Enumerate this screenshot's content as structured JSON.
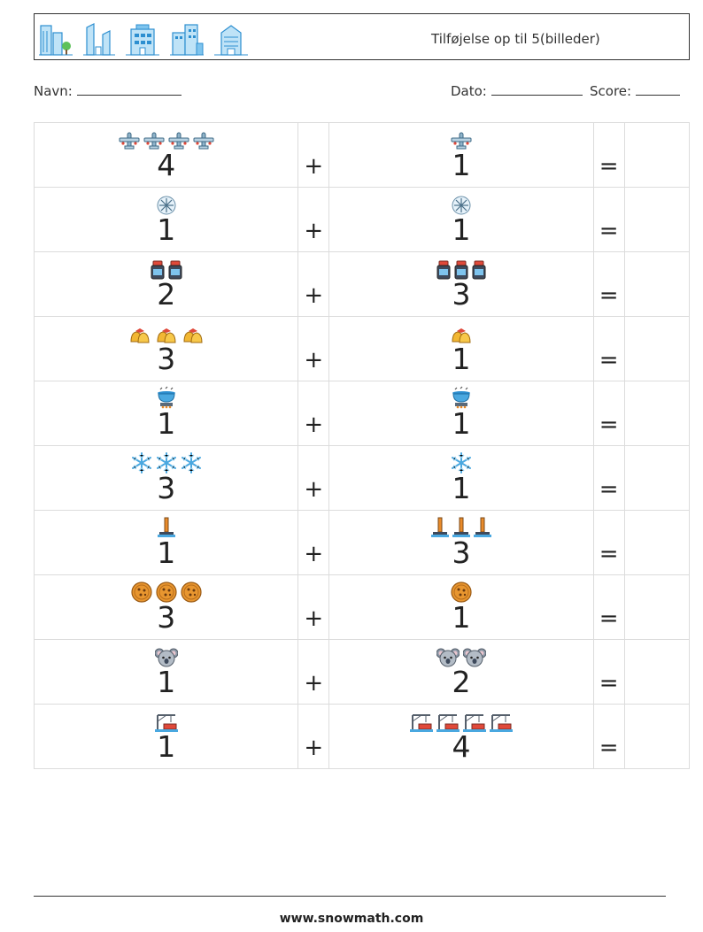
{
  "header": {
    "title": "Tilføjelse op til 5(billeder)",
    "icons": [
      "office-buildings-icon",
      "skyscrapers-icon",
      "apartment-building-icon",
      "city-buildings-icon",
      "tower-building-icon"
    ]
  },
  "meta": {
    "name_label": "Navn:",
    "date_label": "Dato:",
    "score_label": "Score:"
  },
  "operators": {
    "plus": "+",
    "equals": "="
  },
  "rows": [
    {
      "icon": "airplane",
      "a": 4,
      "b": 1
    },
    {
      "icon": "snowflake-ball",
      "a": 1,
      "b": 1
    },
    {
      "icon": "jar",
      "a": 2,
      "b": 3
    },
    {
      "icon": "bells",
      "a": 3,
      "b": 1
    },
    {
      "icon": "cooking-pot",
      "a": 1,
      "b": 1
    },
    {
      "icon": "snowflake",
      "a": 3,
      "b": 1
    },
    {
      "icon": "pole",
      "a": 1,
      "b": 3
    },
    {
      "icon": "cookie",
      "a": 3,
      "b": 1
    },
    {
      "icon": "koala",
      "a": 1,
      "b": 2
    },
    {
      "icon": "crane",
      "a": 1,
      "b": 4
    }
  ],
  "colors": {
    "building_blue": "#4aa8e0",
    "accent_red": "#e0493a",
    "accent_orange": "#e98b2a",
    "cookie_orange": "#e8962f",
    "koala_grey": "#8e9aa8"
  },
  "footer": {
    "url": "www.snowmath.com"
  }
}
